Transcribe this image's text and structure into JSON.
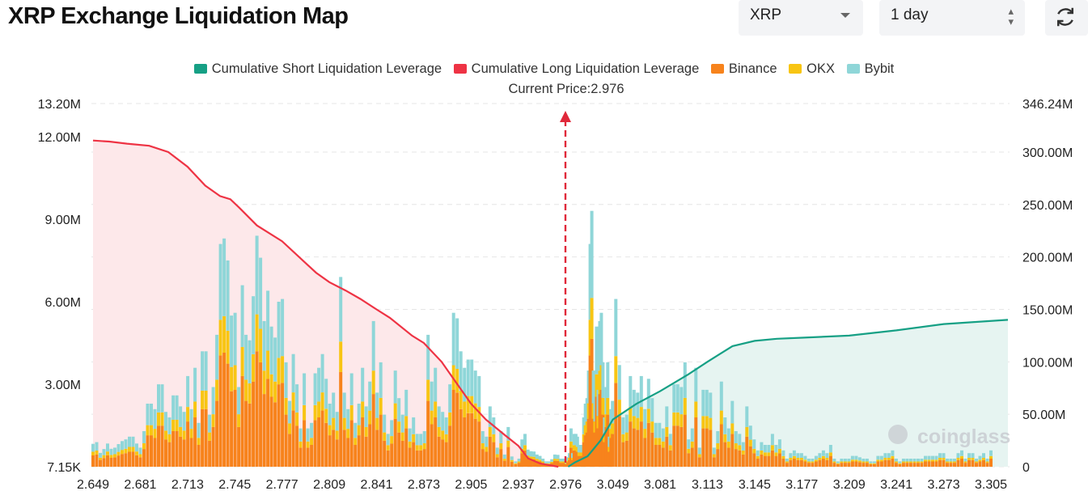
{
  "header": {
    "title": "XRP Exchange Liquidation Map",
    "symbol_select": "XRP",
    "period_select": "1 day",
    "refresh_icon": "refresh-icon"
  },
  "current_price_label": "Current Price:2.976",
  "watermark": "coinglass",
  "colors": {
    "short_line": "#16a085",
    "long_line": "#ee3344",
    "binance": "#f7831c",
    "okx": "#f8c513",
    "bybit": "#8fd6d8"
  },
  "chart_data": {
    "type": "bar",
    "current_price": 2.976,
    "x_tick_labels": [
      "2.649",
      "2.681",
      "2.713",
      "2.745",
      "2.777",
      "2.809",
      "2.841",
      "2.873",
      "2.905",
      "2.937",
      "2.976",
      "3.049",
      "3.081",
      "3.113",
      "3.145",
      "3.177",
      "3.209",
      "3.241",
      "3.273",
      "3.305"
    ],
    "y_left_ticks": [
      "7.15K",
      "3.00M",
      "6.00M",
      "9.00M",
      "12.00M",
      "13.20M"
    ],
    "y_left_range": [
      7150,
      13200000
    ],
    "y_right_ticks": [
      "0",
      "50.00M",
      "100.00M",
      "150.00M",
      "200.00M",
      "250.00M",
      "300.00M",
      "346.24M"
    ],
    "y_right_range": [
      0,
      346240000
    ],
    "legend": [
      {
        "name": "Cumulative Short Liquidation Leverage",
        "color": "#16a085"
      },
      {
        "name": "Cumulative Long Liquidation Leverage",
        "color": "#ee3344"
      },
      {
        "name": "Binance",
        "color": "#f7831c"
      },
      {
        "name": "OKX",
        "color": "#f8c513"
      },
      {
        "name": "Bybit",
        "color": "#8fd6d8"
      }
    ],
    "bar_price_range": [
      2.649,
      3.305
    ],
    "bar_totals_m": [
      0.84,
      0.9,
      0.51,
      0.65,
      0.85,
      0.66,
      0.7,
      0.83,
      0.94,
      1.0,
      1.1,
      1.1,
      0.85,
      0.7,
      1.3,
      2.3,
      2.3,
      2.1,
      3.0,
      3.0,
      2.0,
      1.8,
      2.6,
      2.6,
      2.2,
      2.0,
      3.3,
      2.1,
      3.6,
      1.6,
      4.2,
      4.2,
      1.9,
      2.9,
      4.8,
      8.1,
      8.3,
      7.5,
      5.5,
      5.6,
      2.9,
      6.6,
      4.8,
      4.6,
      6.2,
      8.4,
      7.6,
      5.3,
      6.4,
      5.1,
      4.7,
      6.0,
      6.1,
      3.8,
      2.4,
      4.1,
      3.0,
      1.4,
      3.4,
      1.4,
      1.6,
      3.4,
      3.6,
      4.1,
      3.2,
      2.3,
      2.7,
      2.0,
      6.9,
      2.7,
      2.1,
      3.4,
      1.6,
      2.3,
      3.6,
      2.2,
      3.1,
      5.3,
      2.7,
      3.8,
      1.9,
      1.2,
      1.7,
      3.5,
      2.5,
      1.9,
      2.8,
      1.4,
      1.8,
      1.2,
      1.2,
      1.3,
      4.8,
      3.1,
      3.6,
      2.2,
      2.0,
      1.8,
      3.0,
      5.6,
      5.4,
      4.2,
      3.6,
      3.9,
      3.9,
      3.5,
      3.3,
      1.3,
      1.1,
      2.2,
      1.8,
      0.7,
      1.3,
      0.45,
      1.45,
      0.38,
      0.2,
      0.3,
      1.0,
      1.2,
      0.63,
      0.57,
      0.56,
      0.45,
      0.4,
      0.3,
      0.2,
      0.2,
      0.28,
      0.45,
      0.44,
      0.3,
      0.3,
      0.21,
      0.35,
      0.5,
      1.4,
      0.5,
      1.2,
      1.2,
      1.1,
      0.8,
      0.8,
      0.8,
      1.8,
      2.3,
      2.5,
      3.5,
      8.1,
      9.3,
      3.5,
      2.5,
      5.1,
      2.8,
      5.3,
      5.6,
      3.8,
      1.8,
      2.9,
      3.8,
      1.1,
      2.1,
      2.4,
      6.1,
      3.7,
      1.8,
      1.9,
      3.3,
      2.8,
      2.7,
      3.3,
      2.1,
      3.2,
      2.5,
      1.6,
      1.6,
      1.4,
      2.2,
      1.2,
      3.0,
      3.0,
      2.9,
      3.8,
      1.0,
      1.4,
      3.6,
      0.7,
      2.8,
      2.8,
      2.7,
      0.7,
      1.3,
      3.1,
      1.8,
      1.4,
      2.4,
      1.3,
      1.2,
      0.9,
      2.2,
      1.5,
      1.0,
      0.6,
      0.9,
      0.8,
      0.8,
      1.2,
      0.8,
      1.0,
      0.6,
      0.3,
      0.5,
      0.6,
      0.5,
      0.5,
      0.4,
      0.3,
      0.3,
      0.4,
      0.5,
      0.6,
      0.5,
      0.8,
      0.3,
      0.2,
      0.3,
      0.3,
      0.3,
      0.4,
      0.4,
      0.35,
      0.3,
      0.3,
      0.2,
      0.2,
      0.4,
      0.4,
      0.5,
      0.5,
      0.6,
      0.3,
      0.2,
      0.3,
      0.3,
      0.3,
      0.3,
      0.3,
      0.3,
      0.4,
      0.4,
      0.4,
      0.4,
      0.5,
      0.5,
      0.3,
      0.3,
      0.3,
      0.5,
      0.6,
      0.3,
      0.5,
      0.5,
      0.3,
      0.4,
      0.5,
      0.3,
      0.6
    ],
    "binance_share": 0.5,
    "okx_share": 0.16,
    "cumulative_long_points_m": [
      [
        2.649,
        311
      ],
      [
        2.66,
        310
      ],
      [
        2.672,
        308
      ],
      [
        2.687,
        306
      ],
      [
        2.7,
        300
      ],
      [
        2.713,
        286
      ],
      [
        2.725,
        268
      ],
      [
        2.735,
        258
      ],
      [
        2.742,
        255
      ],
      [
        2.748,
        247
      ],
      [
        2.76,
        230
      ],
      [
        2.777,
        215
      ],
      [
        2.79,
        198
      ],
      [
        2.8,
        185
      ],
      [
        2.809,
        176
      ],
      [
        2.82,
        168
      ],
      [
        2.83,
        160
      ],
      [
        2.841,
        150
      ],
      [
        2.85,
        142
      ],
      [
        2.865,
        125
      ],
      [
        2.873,
        118
      ],
      [
        2.885,
        100
      ],
      [
        2.895,
        80
      ],
      [
        2.905,
        60
      ],
      [
        2.915,
        45
      ],
      [
        2.928,
        30
      ],
      [
        2.937,
        20
      ],
      [
        2.945,
        8
      ],
      [
        2.955,
        3
      ],
      [
        2.97,
        0
      ]
    ],
    "cumulative_short_points_m": [
      [
        2.98,
        0
      ],
      [
        2.99,
        4
      ],
      [
        3.01,
        10
      ],
      [
        3.03,
        25
      ],
      [
        3.049,
        45
      ],
      [
        3.065,
        60
      ],
      [
        3.081,
        72
      ],
      [
        3.1,
        88
      ],
      [
        3.113,
        100
      ],
      [
        3.13,
        115
      ],
      [
        3.145,
        120
      ],
      [
        3.16,
        122
      ],
      [
        3.177,
        123
      ],
      [
        3.209,
        125
      ],
      [
        3.241,
        130
      ],
      [
        3.273,
        136
      ],
      [
        3.305,
        140
      ]
    ]
  }
}
